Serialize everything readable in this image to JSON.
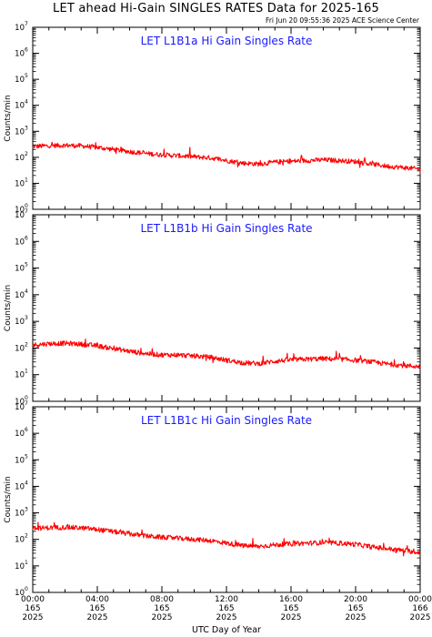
{
  "header": {
    "title": "LET ahead Hi-Gain SINGLES RATES Data for 2025-165",
    "timestamp": "Fri Jun 20 09:55:36 2025 ACE Science Center"
  },
  "colors": {
    "series": "#ff0000",
    "panel_title": "#1a1aff",
    "axes": "#000000"
  },
  "chart_data": [
    {
      "type": "line",
      "title": "LET L1B1a Hi Gain Singles Rate",
      "ylabel": "Counts/min",
      "yscale": "log",
      "ylim": [
        1,
        10000000
      ],
      "xlim": [
        0,
        24
      ],
      "series": [
        {
          "x": [
            0,
            1,
            2,
            3,
            4,
            5,
            6,
            7,
            8,
            9,
            10,
            11,
            12,
            13,
            14,
            15,
            16,
            17,
            18,
            19,
            20,
            21,
            22,
            23,
            24
          ],
          "values": [
            260,
            280,
            290,
            275,
            240,
            200,
            165,
            140,
            125,
            115,
            105,
            95,
            75,
            60,
            55,
            65,
            70,
            75,
            80,
            75,
            68,
            55,
            45,
            40,
            35
          ]
        }
      ]
    },
    {
      "type": "line",
      "title": "LET L1B1b Hi Gain Singles Rate",
      "ylabel": "Counts/min",
      "yscale": "log",
      "ylim": [
        1,
        10000000
      ],
      "xlim": [
        0,
        24
      ],
      "series": [
        {
          "x": [
            0,
            1,
            2,
            3,
            4,
            5,
            6,
            7,
            8,
            9,
            10,
            11,
            12,
            13,
            14,
            15,
            16,
            17,
            18,
            19,
            20,
            21,
            22,
            23,
            24
          ],
          "values": [
            130,
            145,
            150,
            140,
            120,
            95,
            75,
            62,
            55,
            55,
            50,
            45,
            35,
            28,
            26,
            32,
            36,
            38,
            40,
            38,
            35,
            30,
            25,
            22,
            20
          ]
        }
      ]
    },
    {
      "type": "line",
      "title": "LET L1B1c Hi Gain Singles Rate",
      "ylabel": "Counts/min",
      "yscale": "log",
      "ylim": [
        1,
        10000000
      ],
      "xlim": [
        0,
        24
      ],
      "series": [
        {
          "x": [
            0,
            1,
            2,
            3,
            4,
            5,
            6,
            7,
            8,
            9,
            10,
            11,
            12,
            13,
            14,
            15,
            16,
            17,
            18,
            19,
            20,
            21,
            22,
            23,
            24
          ],
          "values": [
            255,
            275,
            285,
            270,
            235,
            195,
            160,
            135,
            120,
            110,
            100,
            90,
            72,
            58,
            54,
            62,
            68,
            72,
            76,
            72,
            65,
            52,
            44,
            38,
            32
          ]
        }
      ]
    }
  ],
  "x_axis": {
    "label": "UTC Day of Year",
    "ticks": [
      {
        "x": 0,
        "lines": [
          "00:00",
          "165",
          "2025"
        ]
      },
      {
        "x": 4,
        "lines": [
          "04:00",
          "165",
          "2025"
        ]
      },
      {
        "x": 8,
        "lines": [
          "08:00",
          "165",
          "2025"
        ]
      },
      {
        "x": 12,
        "lines": [
          "12:00",
          "165",
          "2025"
        ]
      },
      {
        "x": 16,
        "lines": [
          "16:00",
          "165",
          "2025"
        ]
      },
      {
        "x": 20,
        "lines": [
          "20:00",
          "165",
          "2025"
        ]
      },
      {
        "x": 24,
        "lines": [
          "00:00",
          "166",
          "2025"
        ]
      }
    ]
  }
}
